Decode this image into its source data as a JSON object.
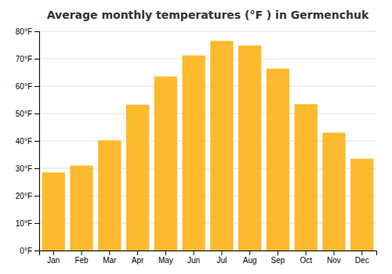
{
  "chart_data": {
    "type": "bar",
    "title": "Average monthly temperatures (°F ) in Germenchuk",
    "categories": [
      "Jan",
      "Feb",
      "Mar",
      "Apr",
      "May",
      "Jun",
      "Jul",
      "Aug",
      "Sep",
      "Oct",
      "Nov",
      "Dec"
    ],
    "values": [
      28.5,
      31.0,
      40.2,
      53.2,
      63.5,
      71.2,
      76.5,
      74.8,
      66.4,
      53.4,
      43.0,
      33.5
    ],
    "color": "#FDBA2E",
    "ylim": [
      0,
      80
    ],
    "yticks": [
      {
        "value": 0,
        "label": "0°F"
      },
      {
        "value": 10,
        "label": "10°F"
      },
      {
        "value": 20,
        "label": "20°F"
      },
      {
        "value": 30,
        "label": "30°F"
      },
      {
        "value": 40,
        "label": "40°F"
      },
      {
        "value": 50,
        "label": "50°F"
      },
      {
        "value": 60,
        "label": "60°F"
      },
      {
        "value": 70,
        "label": "70°F"
      },
      {
        "value": 80,
        "label": "80°F"
      }
    ],
    "grid": true
  }
}
